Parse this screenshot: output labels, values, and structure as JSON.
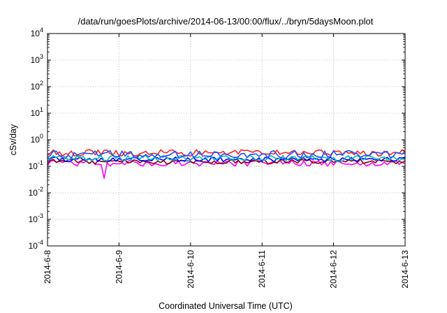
{
  "chart_data": {
    "type": "line",
    "title": "/data/run/goesPlots/archive/2014-06-13/00:00/flux/../bryn/5daysMoon.plot",
    "xlabel": "Coordinated Universal Time (UTC)",
    "ylabel": "cSv/day",
    "y_scale": "log",
    "ylim": [
      0.0001,
      10000
    ],
    "xlim": [
      "2014-6-8",
      "2014-6-13"
    ],
    "x_ticks": [
      "2014-6-8",
      "2014-6-9",
      "2014-6-10",
      "2014-6-11",
      "2014-6-12",
      "2014-6-13"
    ],
    "y_ticks": [
      {
        "base": "10",
        "exp": "-4",
        "value": 0.0001
      },
      {
        "base": "10",
        "exp": "-3",
        "value": 0.001
      },
      {
        "base": "10",
        "exp": "-2",
        "value": 0.01
      },
      {
        "base": "10",
        "exp": "-1",
        "value": 0.1
      },
      {
        "base": "10",
        "exp": "0",
        "value": 1
      },
      {
        "base": "10",
        "exp": "1",
        "value": 10
      },
      {
        "base": "10",
        "exp": "2",
        "value": 100
      },
      {
        "base": "10",
        "exp": "3",
        "value": 1000
      },
      {
        "base": "10",
        "exp": "4",
        "value": 10000
      }
    ],
    "grid": true,
    "series": [
      {
        "color": "#ff00ff",
        "level": 0.13,
        "amplitude": 0.22,
        "dips": [
          {
            "x": 0.78,
            "value": 0.035
          }
        ]
      },
      {
        "color": "#8b0000",
        "level": 0.15,
        "amplitude": 0.18,
        "dips": []
      },
      {
        "color": "#0000ff",
        "level": 0.18,
        "amplitude": 0.18,
        "dips": []
      },
      {
        "color": "#00c0c0",
        "level": 0.2,
        "amplitude": 0.22,
        "dips": []
      },
      {
        "color": "#ff2020",
        "level": 0.32,
        "amplitude": 0.25,
        "dips": []
      },
      {
        "color": "#2050ff",
        "level": 0.28,
        "amplitude": 0.3,
        "dips": []
      }
    ]
  }
}
